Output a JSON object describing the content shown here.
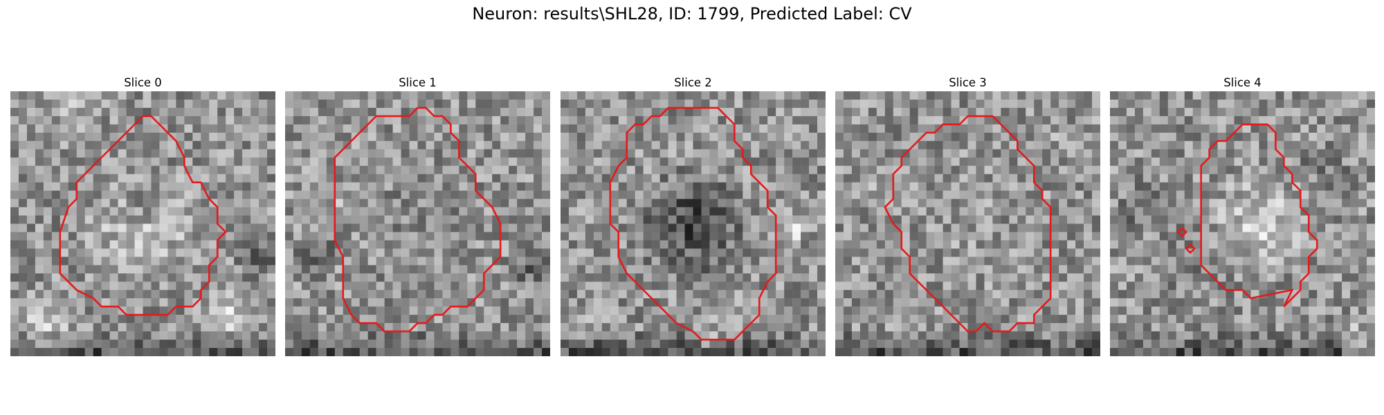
{
  "figure": {
    "title": "Neuron: results\\SHL28, ID: 1799, Predicted Label: CV"
  },
  "contour_color": "#e41a1c",
  "panels": [
    {
      "title": "Slice 0"
    },
    {
      "title": "Slice 1"
    },
    {
      "title": "Slice 2"
    },
    {
      "title": "Slice 3"
    },
    {
      "title": "Slice 4"
    }
  ]
}
